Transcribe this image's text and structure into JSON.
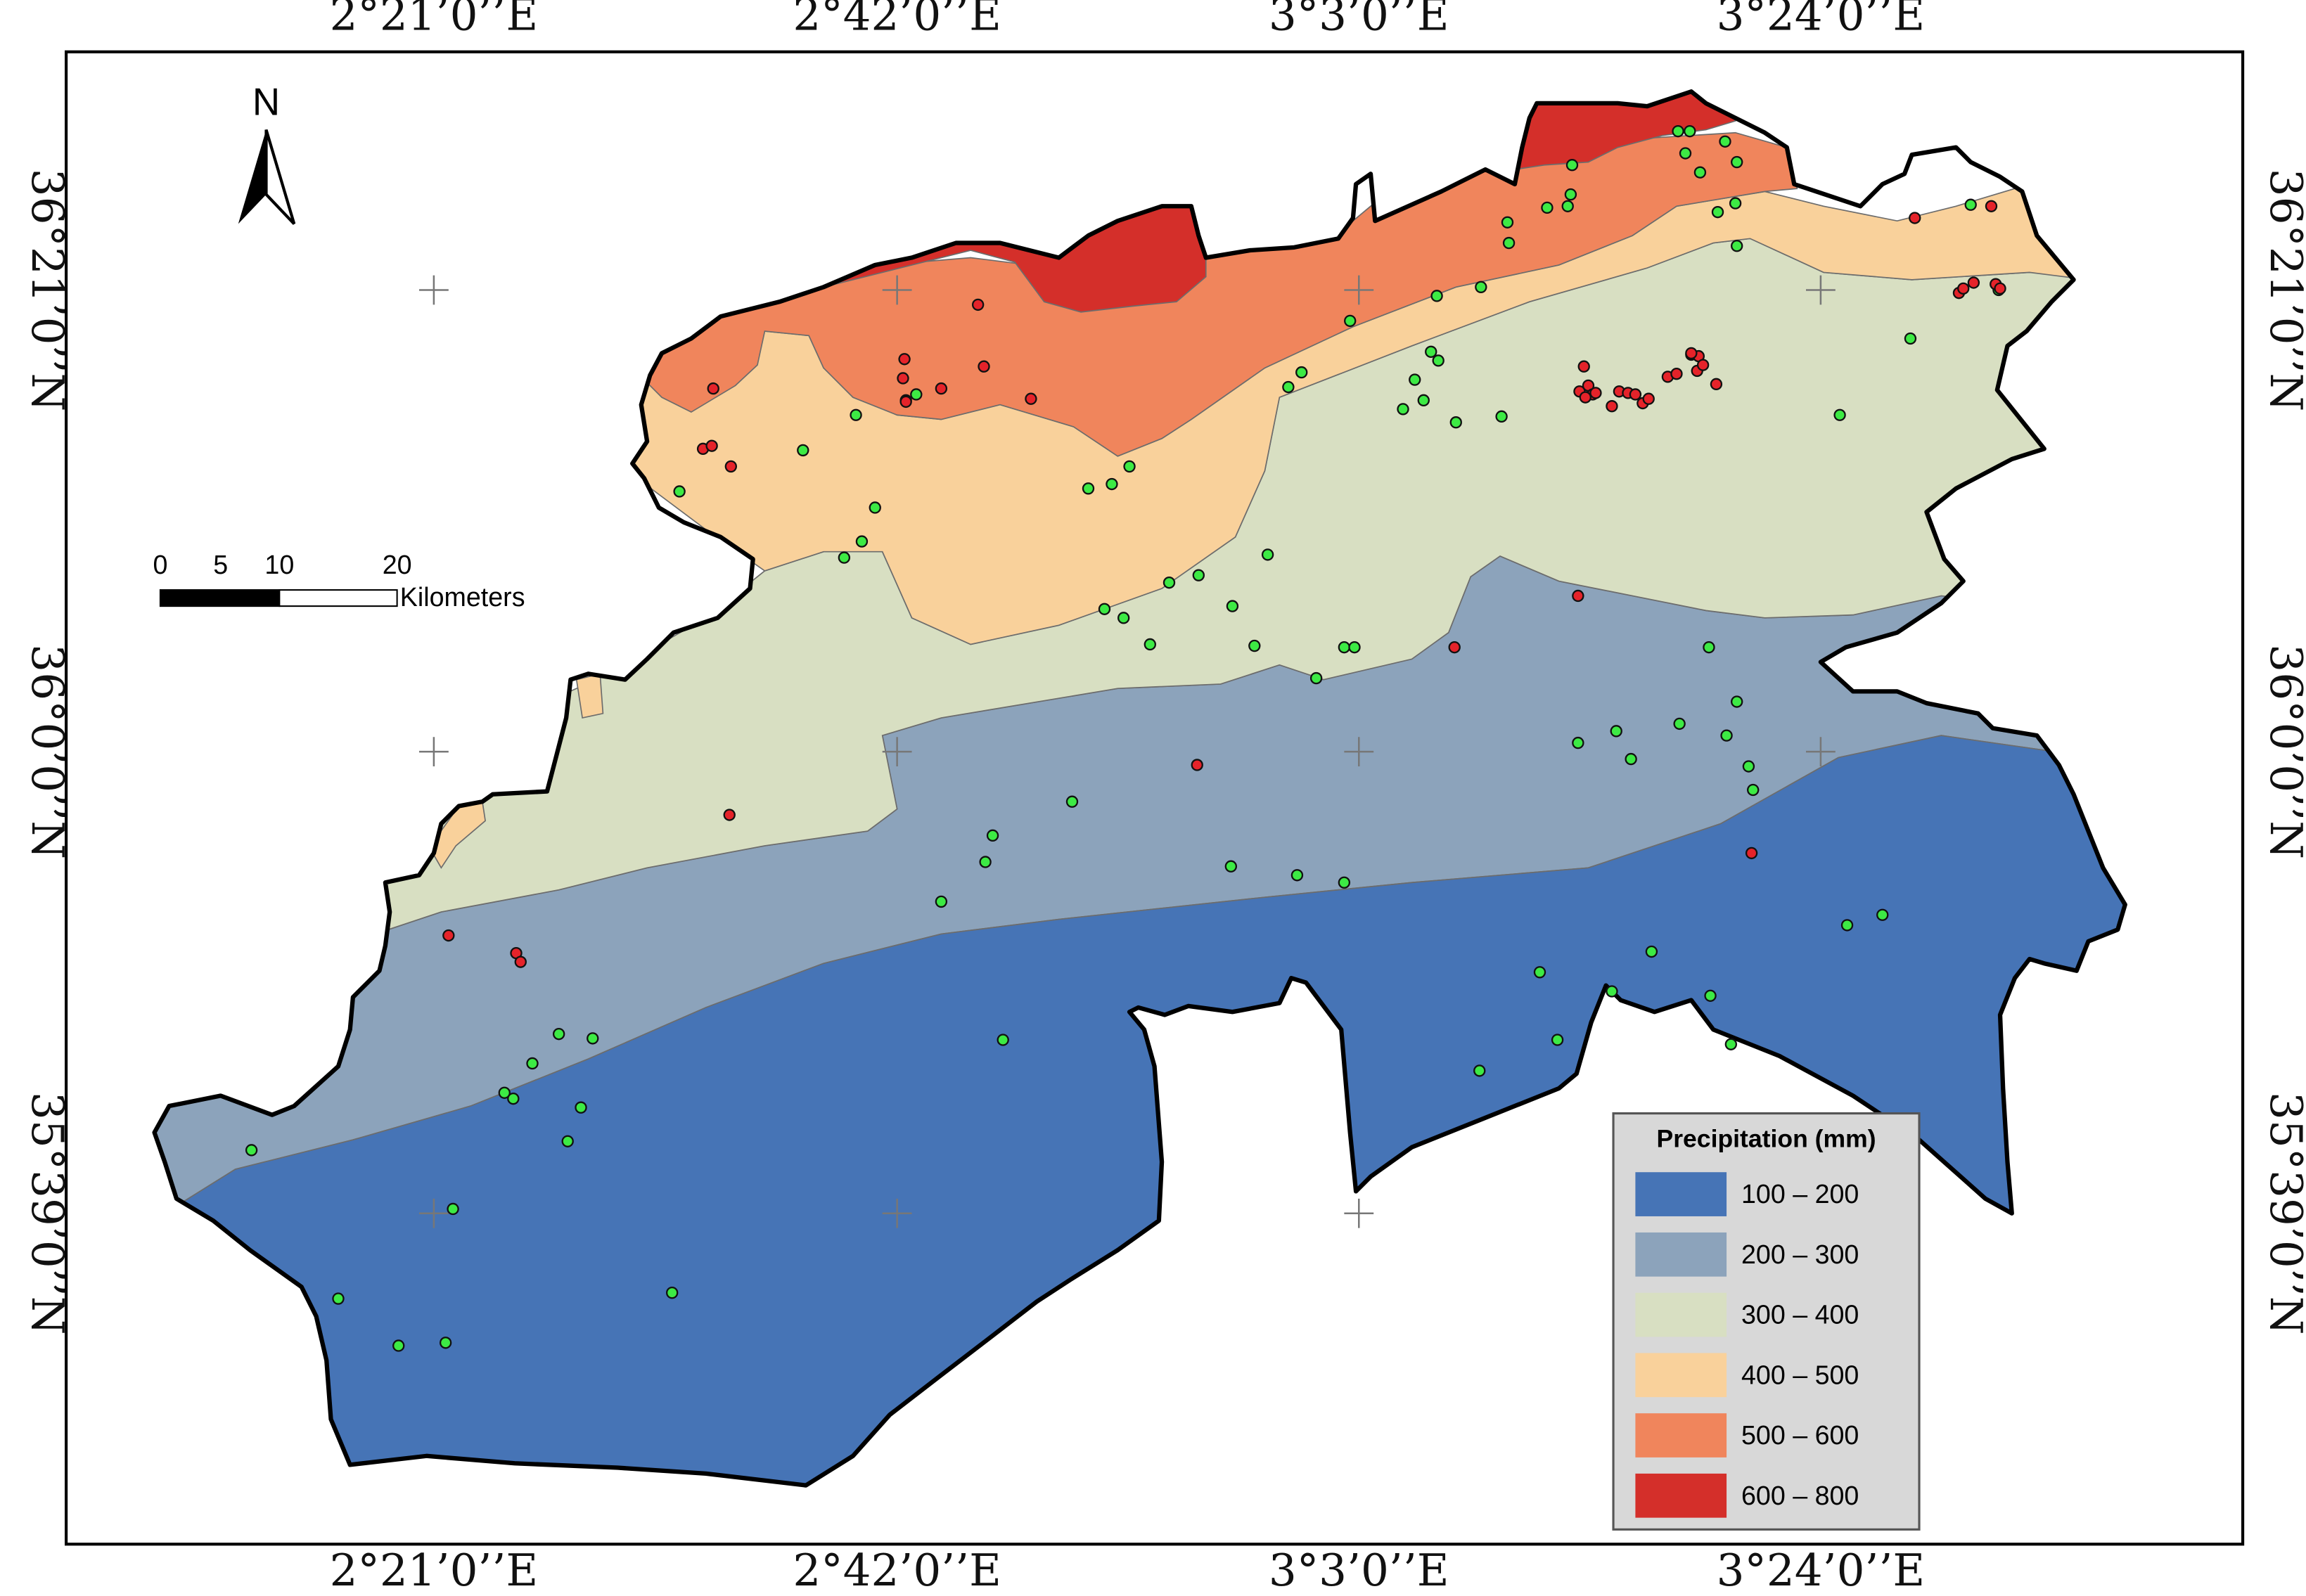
{
  "map": {
    "coords": {
      "top": [
        "2°21’0’’E",
        "2°42’0’’E",
        "3°3’0’’E",
        "3°24’0’’E"
      ],
      "bottom": [
        "2°21’0’’E",
        "2°42’0’’E",
        "3°3’0’’E",
        "3°24’0’’E"
      ],
      "left": [
        "36°21’0’’N",
        "36°0’0’’N",
        "35°39’0’’N"
      ],
      "right": [
        "36°21’0’’N",
        "36°0’0’’N",
        "35°39’0’’N"
      ]
    },
    "north_arrow": {
      "label": "N"
    },
    "scale_bar": {
      "ticks": [
        "0",
        "5",
        "10",
        "20"
      ],
      "unit": "Kilometers"
    },
    "legend": {
      "title": "Precipitation (mm)",
      "classes": [
        {
          "label": "100 – 200",
          "color": "#4674b6"
        },
        {
          "label": "200 – 300",
          "color": "#8ca3bb"
        },
        {
          "label": "300 – 400",
          "color": "#d8dfc2"
        },
        {
          "label": "400 – 500",
          "color": "#f9d19b"
        },
        {
          "label": "500 – 600",
          "color": "#f0855c"
        },
        {
          "label": "600 – 800",
          "color": "#d42f2a"
        }
      ]
    },
    "station_colors": {
      "green": "#3dea44",
      "red": "#e5232a"
    }
  }
}
